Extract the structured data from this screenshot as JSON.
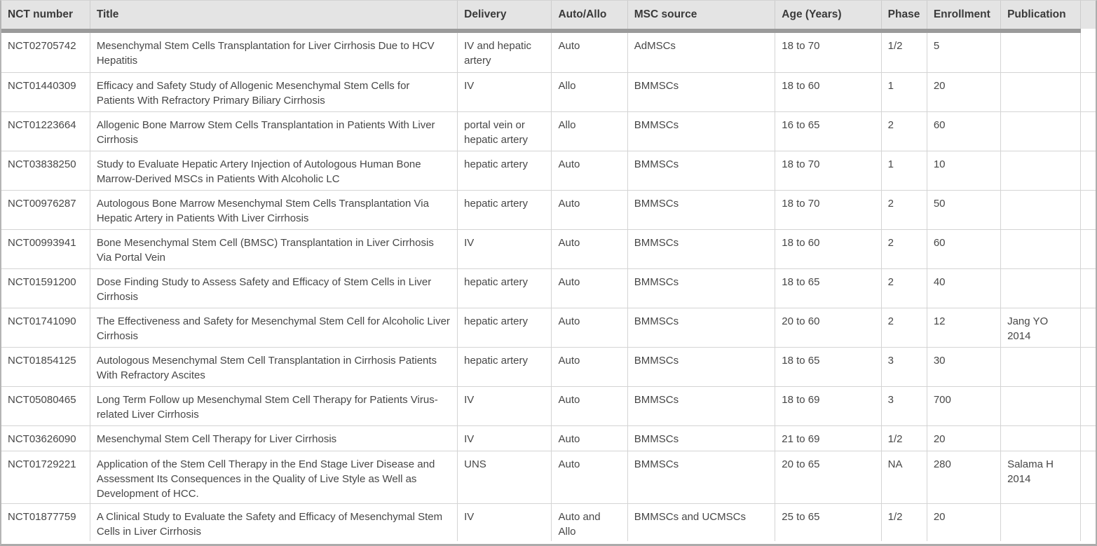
{
  "chart_data": {
    "type": "table",
    "columns": [
      "NCT number",
      "Title",
      "Delivery",
      "Auto/Allo",
      "MSC source",
      "Age (Years)",
      "Phase",
      "Enrollment",
      "Publication"
    ],
    "rows": [
      [
        "NCT02705742",
        "Mesenchymal Stem Cells Transplantation for Liver Cirrhosis Due to HCV Hepatitis",
        "IV and hepatic artery",
        "Auto",
        "AdMSCs",
        "18 to 70",
        "1/2",
        "5",
        ""
      ],
      [
        "NCT01440309",
        "Efficacy and Safety Study of Allogenic Mesenchymal Stem Cells for Patients With Refractory Primary Biliary Cirrhosis",
        "IV",
        "Allo",
        "BMMSCs",
        "18 to 60",
        "1",
        "20",
        ""
      ],
      [
        "NCT01223664",
        "Allogenic Bone Marrow Stem Cells Transplantation in Patients With Liver Cirrhosis",
        "portal vein or hepatic artery",
        "Allo",
        "BMMSCs",
        "16 to 65",
        "2",
        "60",
        ""
      ],
      [
        "NCT03838250",
        "Study to Evaluate Hepatic Artery Injection of Autologous Human Bone Marrow-Derived MSCs in Patients With Alcoholic LC",
        "hepatic artery",
        "Auto",
        "BMMSCs",
        "18 to 70",
        "1",
        "10",
        ""
      ],
      [
        "NCT00976287",
        "Autologous Bone Marrow Mesenchymal Stem Cells Transplantation Via Hepatic Artery in Patients With Liver Cirrhosis",
        "hepatic artery",
        "Auto",
        "BMMSCs",
        "18 to 70",
        "2",
        "50",
        ""
      ],
      [
        "NCT00993941",
        "Bone Mesenchymal Stem Cell (BMSC) Transplantation in Liver Cirrhosis Via Portal Vein",
        "IV",
        "Auto",
        "BMMSCs",
        "18 to 60",
        "2",
        "60",
        ""
      ],
      [
        "NCT01591200",
        "Dose Finding Study to Assess Safety and Efficacy of Stem Cells in Liver Cirrhosis",
        "hepatic artery",
        "Auto",
        "BMMSCs",
        "18 to 65",
        "2",
        "40",
        ""
      ],
      [
        "NCT01741090",
        "The Effectiveness and Safety for Mesenchymal Stem Cell for Alcoholic Liver Cirrhosis",
        "hepatic artery",
        "Auto",
        "BMMSCs",
        "20 to 60",
        "2",
        "12",
        "Jang YO 2014"
      ],
      [
        "NCT01854125",
        "Autologous Mesenchymal Stem Cell Transplantation in Cirrhosis Patients With Refractory Ascites",
        "hepatic artery",
        "Auto",
        "BMMSCs",
        "18 to 65",
        "3",
        "30",
        ""
      ],
      [
        "NCT05080465",
        "Long Term Follow up Mesenchymal Stem Cell Therapy for Patients Virus-related Liver Cirrhosis",
        "IV",
        "Auto",
        "BMMSCs",
        "18 to 69",
        "3",
        "700",
        ""
      ],
      [
        "NCT03626090",
        "Mesenchymal Stem Cell Therapy for Liver Cirrhosis",
        "IV",
        "Auto",
        "BMMSCs",
        "21 to 69",
        "1/2",
        "20",
        ""
      ],
      [
        "NCT01729221",
        "Application of the Stem Cell Therapy in the End Stage Liver Disease and Assessment Its Consequences in the Quality of Live Style as Well as Development of HCC.",
        "UNS",
        "Auto",
        "BMMSCs",
        "20 to 65",
        "NA",
        "280",
        "Salama H 2014"
      ],
      [
        "NCT01877759",
        "A Clinical Study to Evaluate the Safety and Efficacy of Mesenchymal Stem Cells in Liver Cirrhosis",
        "IV",
        "Auto and Allo",
        "BMMSCs and UCMSCs",
        "25 to 65",
        "1/2",
        "20",
        ""
      ]
    ],
    "layout": {
      "grid": true,
      "header_position": "top"
    }
  },
  "colors": {
    "header_bg": "#e4e4e4",
    "header_text": "#3a3a3a",
    "header_bar": "#9a9a9a",
    "grid_line": "#d4d4d4",
    "body_text": "#474747",
    "outer_border": "#ababab"
  }
}
